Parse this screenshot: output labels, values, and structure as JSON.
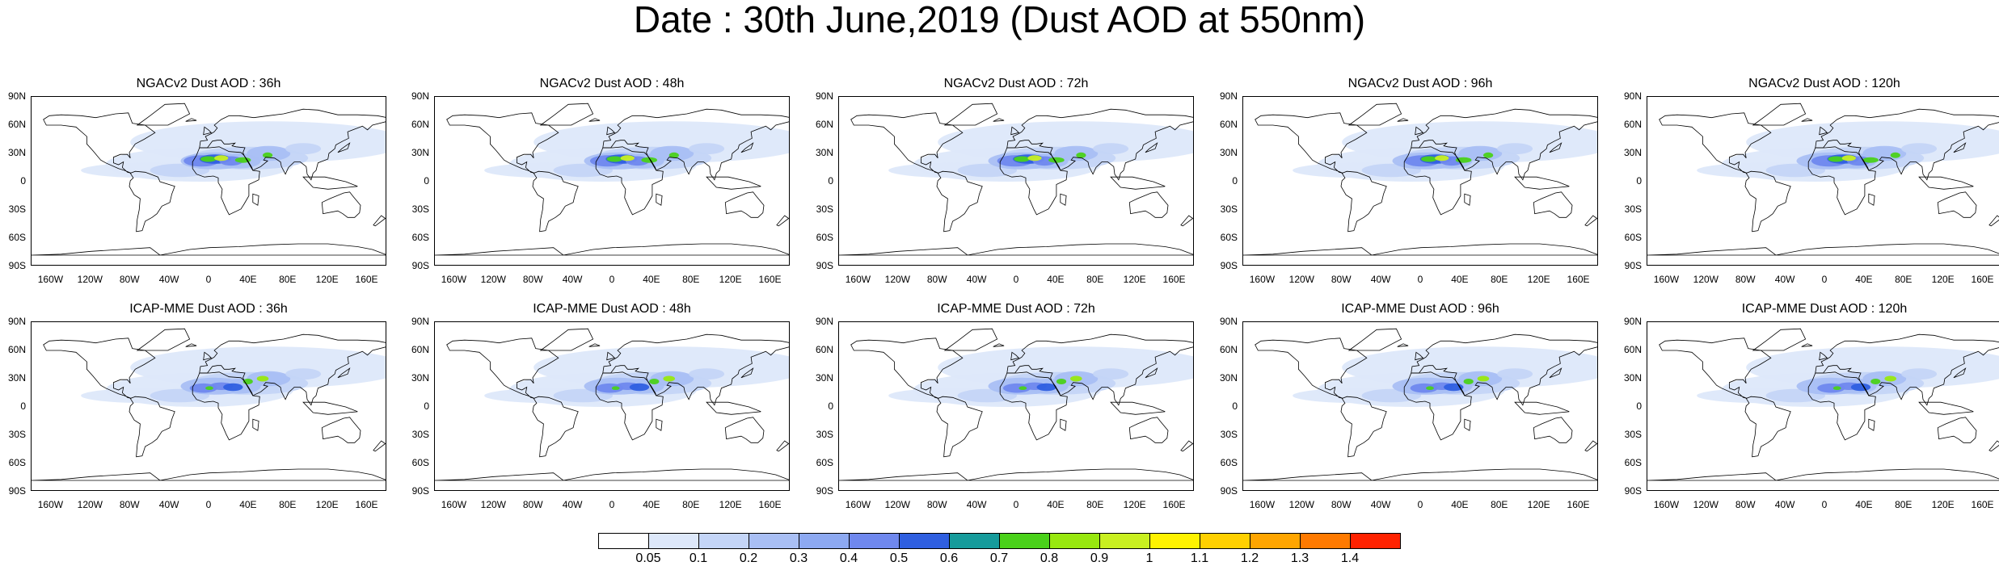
{
  "title": "Date : 30th June,2019 (Dust AOD at 550nm)",
  "panels": [
    {
      "title": "NGACv2 Dust AOD : 36h"
    },
    {
      "title": "NGACv2 Dust AOD : 48h"
    },
    {
      "title": "NGACv2 Dust AOD : 72h"
    },
    {
      "title": "NGACv2 Dust AOD : 96h"
    },
    {
      "title": "NGACv2 Dust AOD : 120h"
    },
    {
      "title": "ICAP-MME Dust AOD : 36h"
    },
    {
      "title": "ICAP-MME Dust AOD : 48h"
    },
    {
      "title": "ICAP-MME Dust AOD : 72h"
    },
    {
      "title": "ICAP-MME Dust AOD : 96h"
    },
    {
      "title": "ICAP-MME Dust AOD : 120h"
    }
  ],
  "lat_ticks": [
    "90N",
    "60N",
    "30N",
    "0",
    "30S",
    "60S",
    "90S"
  ],
  "lon_ticks": [
    "160W",
    "120W",
    "80W",
    "40W",
    "0",
    "40E",
    "80E",
    "120E",
    "160E"
  ],
  "colorbar": {
    "levels": [
      "0.05",
      "0.1",
      "0.2",
      "0.3",
      "0.4",
      "0.5",
      "0.6",
      "0.7",
      "0.8",
      "0.9",
      "1",
      "1.1",
      "1.2",
      "1.3",
      "1.4"
    ],
    "colors": [
      "#ffffff",
      "#dde8fa",
      "#c4d5f7",
      "#a9bff4",
      "#8da9f1",
      "#6f88ee",
      "#2f5fe0",
      "#169b9b",
      "#4ad11a",
      "#98e80f",
      "#c9f020",
      "#fff200",
      "#ffd000",
      "#ffa500",
      "#ff7a00",
      "#ff2200"
    ]
  }
}
